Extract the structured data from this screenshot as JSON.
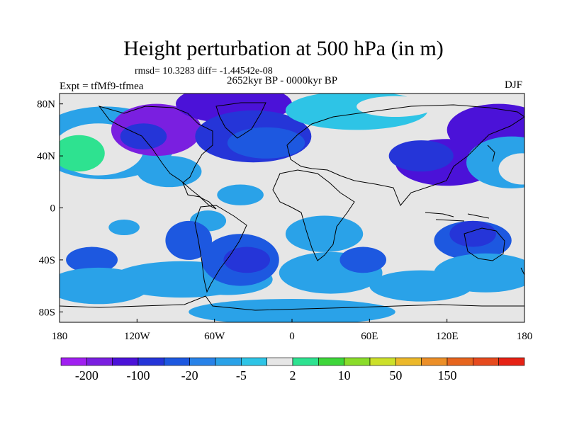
{
  "title": "Height perturbation at 500 hPa (in m)",
  "stats_line": "rmsd= 10.3283 diff= -1.44542e-08",
  "period": "2652kyr BP - 0000kyr BP",
  "experiment": "Expt = tfMf9-tfmea",
  "season": "DJF",
  "map": {
    "lat_ticks": [
      {
        "value": 80,
        "label": "80N"
      },
      {
        "value": 40,
        "label": "40N"
      },
      {
        "value": 0,
        "label": "0"
      },
      {
        "value": -40,
        "label": "40S"
      },
      {
        "value": -80,
        "label": "80S"
      }
    ],
    "lon_ticks": [
      {
        "value": -180,
        "label": "180"
      },
      {
        "value": -120,
        "label": "120W"
      },
      {
        "value": -60,
        "label": "60W"
      },
      {
        "value": 0,
        "label": "0"
      },
      {
        "value": 60,
        "label": "60E"
      },
      {
        "value": 120,
        "label": "120E"
      },
      {
        "value": 180,
        "label": "180"
      }
    ],
    "anomaly_blobs": [
      {
        "lon": 160,
        "lat": 60,
        "rx": 40,
        "ry": 20,
        "level": 2
      },
      {
        "lon": -145,
        "lat": 50,
        "rx": 55,
        "ry": 28,
        "level": 6
      },
      {
        "lon": -150,
        "lat": 45,
        "rx": 35,
        "ry": 20,
        "level": 8
      },
      {
        "lon": -165,
        "lat": 42,
        "rx": 20,
        "ry": 14,
        "level": 9
      },
      {
        "lon": -105,
        "lat": 60,
        "rx": 35,
        "ry": 20,
        "level": 1
      },
      {
        "lon": -115,
        "lat": 55,
        "rx": 18,
        "ry": 10,
        "level": 3
      },
      {
        "lon": -45,
        "lat": 80,
        "rx": 45,
        "ry": 15,
        "level": 2
      },
      {
        "lon": -30,
        "lat": 55,
        "rx": 45,
        "ry": 20,
        "level": 3
      },
      {
        "lon": -20,
        "lat": 50,
        "rx": 30,
        "ry": 12,
        "level": 4
      },
      {
        "lon": 50,
        "lat": 75,
        "rx": 55,
        "ry": 15,
        "level": 7
      },
      {
        "lon": 80,
        "lat": 78,
        "rx": 30,
        "ry": 8,
        "level": 8
      },
      {
        "lon": 120,
        "lat": 35,
        "rx": 40,
        "ry": 18,
        "level": 2
      },
      {
        "lon": 100,
        "lat": 40,
        "rx": 25,
        "ry": 12,
        "level": 3
      },
      {
        "lon": 170,
        "lat": 35,
        "rx": 35,
        "ry": 20,
        "level": 6
      },
      {
        "lon": 178,
        "lat": 30,
        "rx": 18,
        "ry": 12,
        "level": 8
      },
      {
        "lon": -95,
        "lat": 28,
        "rx": 25,
        "ry": 12,
        "level": 6
      },
      {
        "lon": -40,
        "lat": 10,
        "rx": 18,
        "ry": 8,
        "level": 6
      },
      {
        "lon": -65,
        "lat": -10,
        "rx": 14,
        "ry": 8,
        "level": 6
      },
      {
        "lon": 25,
        "lat": -20,
        "rx": 30,
        "ry": 14,
        "level": 6
      },
      {
        "lon": -130,
        "lat": -15,
        "rx": 12,
        "ry": 6,
        "level": 6
      },
      {
        "lon": -80,
        "lat": -25,
        "rx": 18,
        "ry": 15,
        "level": 4
      },
      {
        "lon": -85,
        "lat": -55,
        "rx": 55,
        "ry": 14,
        "level": 6
      },
      {
        "lon": -50,
        "lat": -55,
        "rx": 35,
        "ry": 12,
        "level": 6
      },
      {
        "lon": -40,
        "lat": -40,
        "rx": 30,
        "ry": 20,
        "level": 4
      },
      {
        "lon": -35,
        "lat": -40,
        "rx": 18,
        "ry": 10,
        "level": 3
      },
      {
        "lon": -155,
        "lat": -40,
        "rx": 20,
        "ry": 10,
        "level": 4
      },
      {
        "lon": 30,
        "lat": -50,
        "rx": 40,
        "ry": 16,
        "level": 6
      },
      {
        "lon": 55,
        "lat": -40,
        "rx": 18,
        "ry": 10,
        "level": 4
      },
      {
        "lon": 140,
        "lat": -25,
        "rx": 30,
        "ry": 15,
        "level": 4
      },
      {
        "lon": 140,
        "lat": -20,
        "rx": 18,
        "ry": 10,
        "level": 3
      },
      {
        "lon": 150,
        "lat": -50,
        "rx": 40,
        "ry": 15,
        "level": 6
      },
      {
        "lon": 100,
        "lat": -60,
        "rx": 40,
        "ry": 12,
        "level": 6
      },
      {
        "lon": -150,
        "lat": -60,
        "rx": 40,
        "ry": 14,
        "level": 6
      },
      {
        "lon": 0,
        "lat": -80,
        "rx": 80,
        "ry": 10,
        "level": 6
      }
    ]
  },
  "colorbar": {
    "colors": [
      "#a020f0",
      "#7a1fe0",
      "#4b12d8",
      "#2535d8",
      "#1d58e0",
      "#2882e8",
      "#2aa2e8",
      "#2ec4e6",
      "#e6e6e6",
      "#2ee290",
      "#3ed63a",
      "#8adc2a",
      "#cce02a",
      "#ecb82a",
      "#ec8f28",
      "#e6651e",
      "#e64a1e",
      "#e62215"
    ],
    "labels": [
      "-200",
      "-100",
      "-20",
      "-5",
      "2",
      "10",
      "50",
      "150"
    ]
  }
}
